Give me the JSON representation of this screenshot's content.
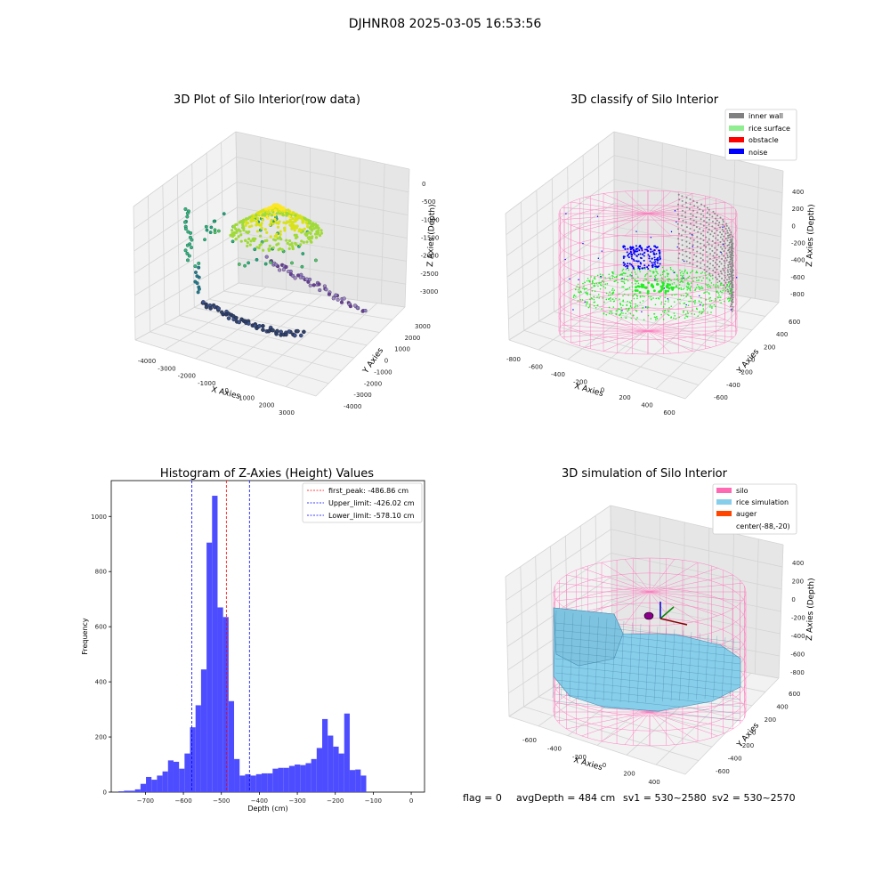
{
  "suptitle": "DJHNR08 2025-03-05 16:53:56",
  "status_line": {
    "flag": "flag = 0",
    "avg_depth": "avgDepth = 484 cm",
    "sv1": "sv1 = 530~2580",
    "sv2": "sv2 = 530~2570"
  },
  "chart_data": [
    {
      "type": "scatter",
      "title": "3D Plot of Silo Interior(row data)",
      "xlabel": "X Axies",
      "ylabel": "Y Axies",
      "zlabel": "Z Axies (Depth)",
      "xlim": [
        -4500,
        3500
      ],
      "ylim": [
        -4000,
        3500
      ],
      "zlim": [
        -3300,
        0
      ],
      "xticks": [
        "-4000",
        "-3000",
        "-2000",
        "-1000",
        "0",
        "1000",
        "2000",
        "3000"
      ],
      "yticks": [
        "-4000",
        "-3000",
        "-2000",
        "-1000",
        "0",
        "1000",
        "2000",
        "3000"
      ],
      "zticks": [
        "0",
        "-500",
        "-1000",
        "-1500",
        "-2000",
        "-2500",
        "-3000"
      ],
      "colormap": "viridis"
    },
    {
      "type": "scatter",
      "title": "3D classify of Silo Interior",
      "xlabel": "X Axies",
      "ylabel": "Y Axies",
      "zlabel": "Z Axies (Depth)",
      "xticks": [
        "-800",
        "-600",
        "-400",
        "-200",
        "0",
        "200",
        "400",
        "600"
      ],
      "yticks": [
        "-600",
        "-400",
        "-200",
        "0",
        "200",
        "400",
        "600"
      ],
      "zticks": [
        "400",
        "200",
        "0",
        "-200",
        "-400",
        "-600",
        "-800"
      ],
      "legend_position": "top-right",
      "legend": [
        {
          "label": "inner wall",
          "color": "#808080"
        },
        {
          "label": "rice surface",
          "color": "#90ee90"
        },
        {
          "label": "obstacle",
          "color": "#ff0000"
        },
        {
          "label": "noise",
          "color": "#0000ff"
        }
      ]
    },
    {
      "type": "bar",
      "title": "Histogram of Z-Axies (Height) Values",
      "xlabel": "Depth (cm)",
      "ylabel": "Frequency",
      "xlim": [
        -790,
        35
      ],
      "ylim": [
        0,
        1130
      ],
      "xticks": [
        -700,
        -600,
        -500,
        -400,
        -300,
        -200,
        -100,
        0
      ],
      "yticks": [
        0,
        200,
        400,
        600,
        800,
        1000
      ],
      "bar_color": "#4d4dff",
      "bin_width": 14.5,
      "bin_start": -771,
      "values": [
        3,
        5,
        5,
        10,
        30,
        55,
        45,
        60,
        75,
        115,
        110,
        85,
        140,
        235,
        315,
        445,
        905,
        1075,
        670,
        635,
        330,
        120,
        60,
        65,
        60,
        65,
        68,
        68,
        85,
        88,
        88,
        95,
        100,
        98,
        105,
        120,
        160,
        265,
        205,
        165,
        140,
        285,
        80,
        82,
        60,
        0
      ],
      "lines": [
        {
          "label": "first_peak: -486.86 cm",
          "x": -486.86,
          "color": "#ff0000"
        },
        {
          "label": "Upper_limit: -426.02 cm",
          "x": -426.02,
          "color": "#0000ff"
        },
        {
          "label": "Lower_limit: -578.10 cm",
          "x": -578.1,
          "color": "#0000ff"
        }
      ],
      "legend_position": "top-right"
    },
    {
      "type": "surface",
      "title": "3D simulation of Silo Interior",
      "xlabel": "X Axies",
      "ylabel": "Y Axies",
      "zlabel": "Z Axies (Depth)",
      "xticks": [
        "-600",
        "-400",
        "-200",
        "0",
        "200",
        "400"
      ],
      "yticks": [
        "-600",
        "-400",
        "-200",
        "0",
        "200",
        "400",
        "600"
      ],
      "zticks": [
        "400",
        "200",
        "0",
        "-200",
        "-400",
        "-600",
        "-800"
      ],
      "legend_position": "top-right",
      "legend": [
        {
          "label": "silo",
          "color": "#ff69b4"
        },
        {
          "label": "rice simulation",
          "color": "#87ceeb"
        },
        {
          "label": "auger",
          "color": "#ff4500"
        },
        {
          "label": "center(-88,-20)",
          "color": "#ffffff"
        }
      ]
    }
  ]
}
